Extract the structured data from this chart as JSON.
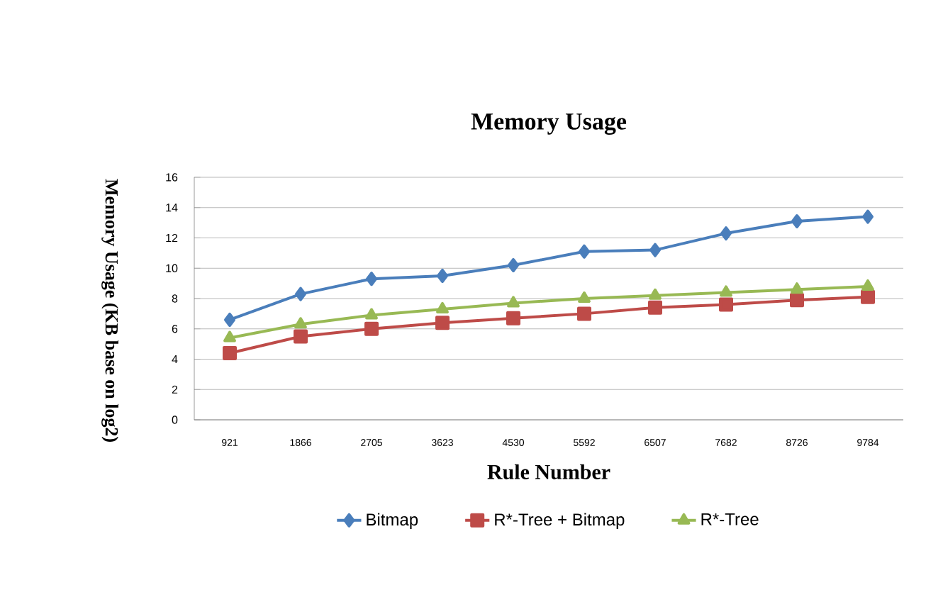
{
  "chart_data": {
    "type": "line",
    "title": "Memory Usage",
    "xlabel": "Rule Number",
    "ylabel": "Memory Usage (KB base on log2)",
    "categories": [
      "921",
      "1866",
      "2705",
      "3623",
      "4530",
      "5592",
      "6507",
      "7682",
      "8726",
      "9784"
    ],
    "series": [
      {
        "name": "Bitmap",
        "color": "#4a7ebb",
        "marker": "diamond",
        "values": [
          6.6,
          8.3,
          9.3,
          9.5,
          10.2,
          11.1,
          11.2,
          12.3,
          13.1,
          13.4
        ]
      },
      {
        "name": "R*-Tree + Bitmap",
        "color": "#be4b48",
        "marker": "square",
        "values": [
          4.4,
          5.5,
          6.0,
          6.4,
          6.7,
          7.0,
          7.4,
          7.6,
          7.9,
          8.1
        ]
      },
      {
        "name": "R*-Tree",
        "color": "#98b954",
        "marker": "triangle",
        "values": [
          5.4,
          6.3,
          6.9,
          7.3,
          7.7,
          8.0,
          8.2,
          8.4,
          8.6,
          8.8
        ]
      }
    ],
    "ylim": [
      0,
      16
    ],
    "yticks": [
      0,
      2,
      4,
      6,
      8,
      10,
      12,
      14,
      16
    ],
    "grid": "y",
    "legend": "bottom",
    "line_style": "solid"
  }
}
